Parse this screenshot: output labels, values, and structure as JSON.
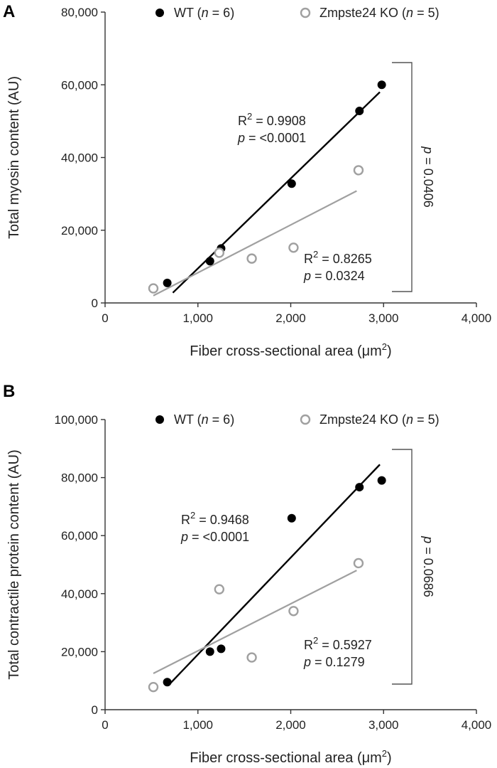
{
  "chart_data": [
    {
      "type": "scatter",
      "panel_label": "A",
      "xlabel": "Fiber cross-sectional area (μm",
      "xlabel_sup": "2",
      "xlabel_suffix": ")",
      "ylabel": "Total myosin content (AU)",
      "xlim": [
        0,
        4000
      ],
      "ylim": [
        0,
        80000
      ],
      "x_ticks": [
        0,
        1000,
        2000,
        3000,
        4000
      ],
      "x_tick_labels": [
        "0",
        "1,000",
        "2,000",
        "3,000",
        "4,000"
      ],
      "y_ticks": [
        0,
        20000,
        40000,
        60000,
        80000
      ],
      "y_tick_labels": [
        "0",
        "20,000",
        "40,000",
        "60,000",
        "80,000"
      ],
      "grid": false,
      "legend_position": "top",
      "series": [
        {
          "name": "WT",
          "n_text": "n",
          "n_value": " = 6)",
          "marker": "filled-circle",
          "color": "#000000",
          "x": [
            670,
            1130,
            1250,
            2010,
            2740,
            2980
          ],
          "y": [
            5500,
            11500,
            15000,
            32800,
            52800,
            60000
          ],
          "fit": {
            "x": [
              730,
              2960
            ],
            "y": [
              2800,
              58000
            ]
          },
          "annotation": {
            "r2_label": "R",
            "r2_value": " = 0.9908",
            "p_label": "p",
            "p_value": " = <0.0001"
          }
        },
        {
          "name": "Zmpste24 KO",
          "n_text": "n",
          "n_value": " = 5)",
          "marker": "open-circle",
          "color": "#a0a0a0",
          "x": [
            520,
            1230,
            1580,
            2030,
            2730
          ],
          "y": [
            4000,
            13800,
            12200,
            15200,
            36500
          ],
          "fit": {
            "x": [
              520,
              2710
            ],
            "y": [
              2000,
              30800
            ]
          },
          "annotation": {
            "r2_label": "R",
            "r2_value": " = 0.8265",
            "p_label": "p",
            "p_value": " = 0.0324"
          }
        }
      ],
      "comparison": {
        "label": "p",
        "value": " = 0.0406"
      }
    },
    {
      "type": "scatter",
      "panel_label": "B",
      "xlabel": "Fiber cross-sectional area (μm",
      "xlabel_sup": "2",
      "xlabel_suffix": ")",
      "ylabel": "Total contractile protein content (AU)",
      "xlim": [
        0,
        4000
      ],
      "ylim": [
        0,
        100000
      ],
      "x_ticks": [
        0,
        1000,
        2000,
        3000,
        4000
      ],
      "x_tick_labels": [
        "0",
        "1,000",
        "2,000",
        "3,000",
        "4,000"
      ],
      "y_ticks": [
        0,
        20000,
        40000,
        60000,
        80000,
        100000
      ],
      "y_tick_labels": [
        "0",
        "20,000",
        "40,000",
        "60,000",
        "80,000",
        "100,000"
      ],
      "grid": false,
      "legend_position": "top",
      "series": [
        {
          "name": "WT",
          "n_text": "n",
          "n_value": " = 6)",
          "marker": "filled-circle",
          "color": "#000000",
          "x": [
            670,
            1130,
            1250,
            2010,
            2740,
            2980
          ],
          "y": [
            9500,
            20000,
            21000,
            66000,
            76700,
            79000
          ],
          "fit": {
            "x": [
              700,
              2960
            ],
            "y": [
              9000,
              84500
            ]
          },
          "annotation": {
            "r2_label": "R",
            "r2_value": " = 0.9468",
            "p_label": "p",
            "p_value": " = <0.0001"
          }
        },
        {
          "name": "Zmpste24 KO",
          "n_text": "n",
          "n_value": " = 5)",
          "marker": "open-circle",
          "color": "#a0a0a0",
          "x": [
            520,
            1230,
            1580,
            2030,
            2730
          ],
          "y": [
            7800,
            41500,
            18000,
            34000,
            50500
          ],
          "fit": {
            "x": [
              520,
              2710
            ],
            "y": [
              12500,
              48000
            ]
          },
          "annotation": {
            "r2_label": "R",
            "r2_value": " = 0.5927",
            "p_label": "p",
            "p_value": " = 0.1279"
          }
        }
      ],
      "comparison": {
        "label": "p",
        "value": " = 0.0686"
      }
    }
  ]
}
